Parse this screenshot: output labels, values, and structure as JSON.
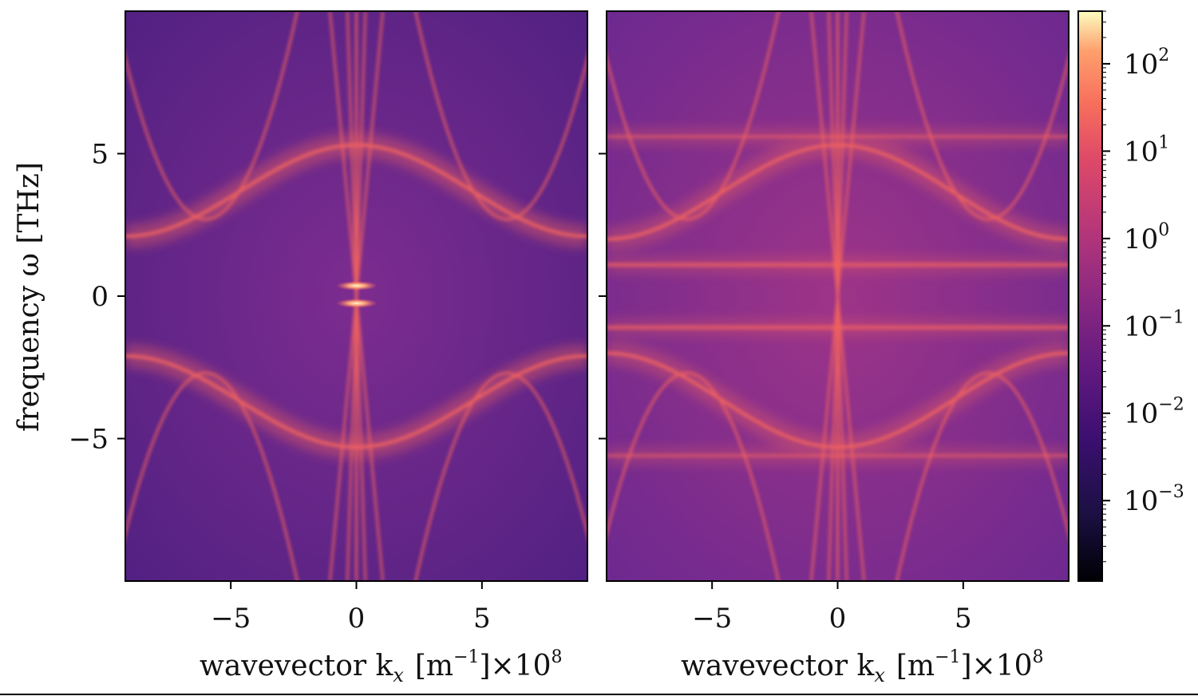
{
  "chart_data": [
    {
      "type": "heatmap",
      "panel": "left",
      "xlabel": "wavevector k_x [m^-1]×10^8",
      "ylabel": "frequency ω [THz]",
      "xlim": [
        -9.2,
        9.2
      ],
      "ylim": [
        -10,
        10
      ],
      "xticks": [
        -5,
        0,
        5
      ],
      "yticks": [
        -5,
        0,
        5
      ],
      "colormap": "magma",
      "color_scale": "log",
      "features": {
        "optical_band_center": 5.3,
        "optical_band_edge": 2.1,
        "gap_half_width": 2.0,
        "bright_spot_freqs": [
          0.35,
          -0.25
        ]
      }
    },
    {
      "type": "heatmap",
      "panel": "right",
      "xlabel": "wavevector k_x [m^-1]×10^8",
      "xlim": [
        -9.2,
        9.2
      ],
      "ylim": [
        -10,
        10
      ],
      "xticks": [
        -5,
        0,
        5
      ],
      "colormap": "magma",
      "color_scale": "log",
      "features": {
        "optical_band_center": 5.3,
        "optical_band_edge": 2.0,
        "flat_lines": [
          5.6,
          1.1,
          -1.1,
          -5.6
        ]
      }
    }
  ],
  "colorbar": {
    "scale": "log",
    "range": [
      0.00012,
      400
    ],
    "ticks": [
      {
        "base": "10",
        "exp": "2",
        "value": 100
      },
      {
        "base": "10",
        "exp": "1",
        "value": 10
      },
      {
        "base": "10",
        "exp": "0",
        "value": 1
      },
      {
        "base": "10",
        "exp": "−1",
        "value": 0.1
      },
      {
        "base": "10",
        "exp": "−2",
        "value": 0.01
      },
      {
        "base": "10",
        "exp": "−3",
        "value": 0.001
      }
    ]
  },
  "ticks": {
    "x": [
      "−5",
      "0",
      "5"
    ],
    "y": [
      "5",
      "0",
      "−5"
    ]
  },
  "labels": {
    "xlabel_left": "wavevector k",
    "xlabel_right": "wavevector k",
    "x_sub": "x",
    "x_unit": "[m",
    "x_unit_exp": "−1",
    "x_unit_close": "]×10",
    "x_exp": "8",
    "ylabel": "frequency ω [THz]"
  },
  "colors": {
    "background_dark": "#4a1f7d",
    "background_mid": "#6f2b8f",
    "band": "#f0625f",
    "bright": "#fcd9a0"
  }
}
